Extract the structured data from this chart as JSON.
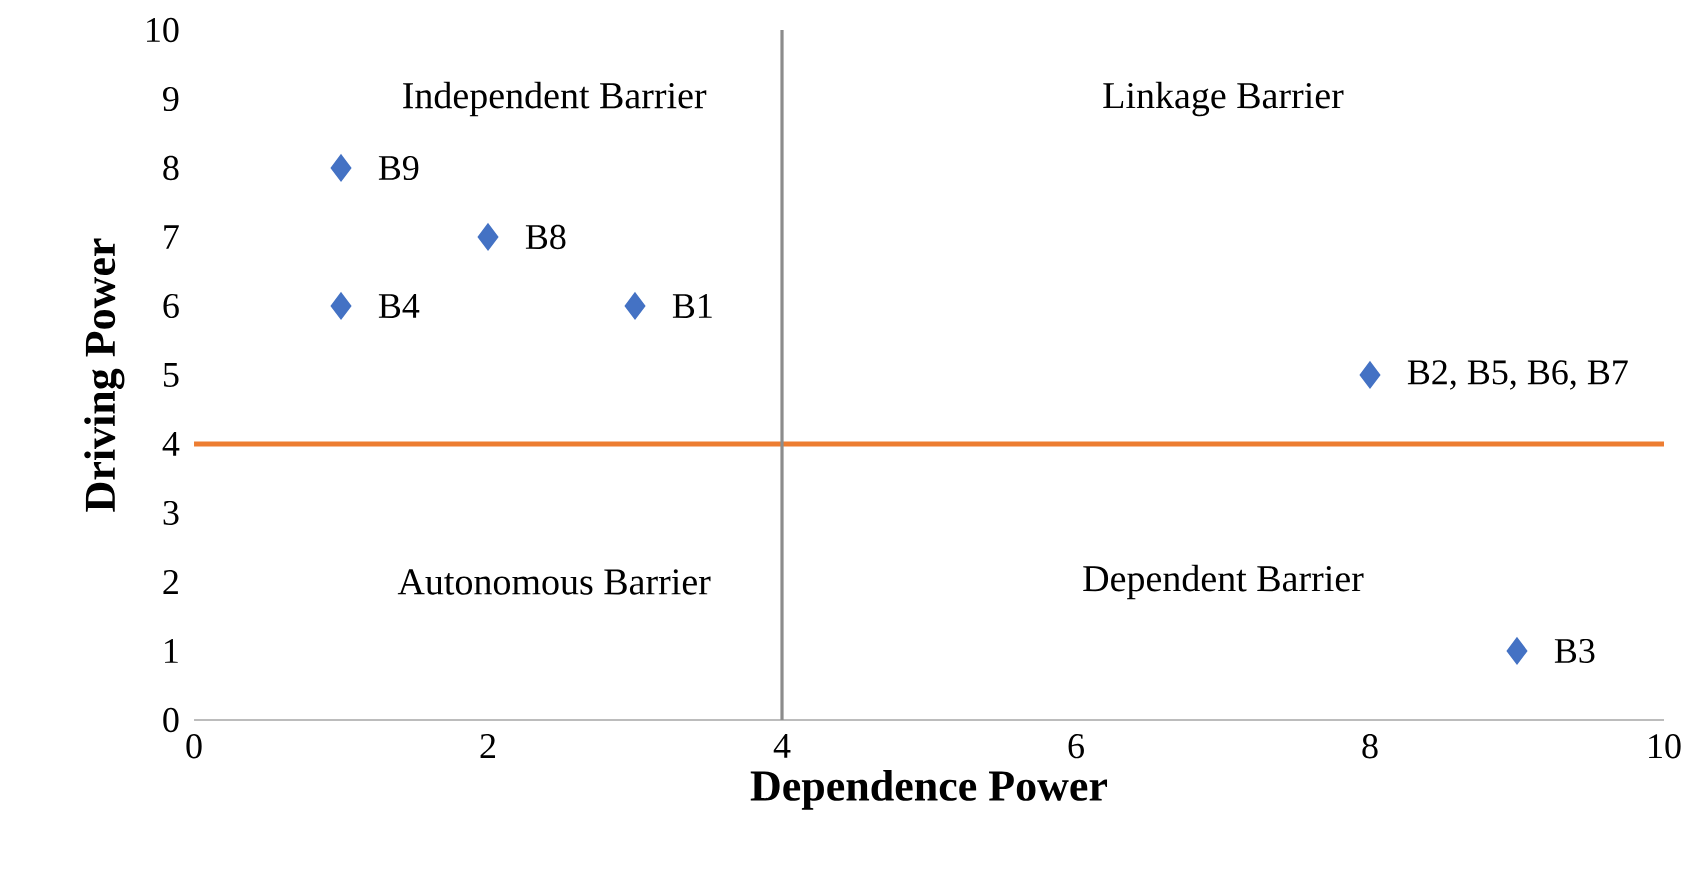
{
  "chart_data": {
    "type": "scatter",
    "xlabel": "Dependence Power",
    "ylabel": "Driving Power",
    "x": [
      1,
      2,
      1,
      3,
      8,
      9
    ],
    "values": [
      8,
      7,
      6,
      6,
      5,
      1
    ],
    "color": "#4472c4",
    "marker": "diamond",
    "xlim": [
      0,
      10
    ],
    "ylim": [
      0,
      10
    ],
    "xticks": [
      0,
      2,
      4,
      6,
      8,
      10
    ],
    "yticks": [
      0,
      1,
      2,
      3,
      4,
      5,
      6,
      7,
      8,
      9,
      10
    ],
    "grid": false,
    "ref_lines": [
      {
        "axis": "y",
        "value": 4,
        "color": "#ed7d31"
      },
      {
        "axis": "x",
        "value": 4,
        "color": "#8c8c8c"
      }
    ],
    "annotations": [
      {
        "text": "B9",
        "x": 1,
        "y": 8
      },
      {
        "text": "B8",
        "x": 2,
        "y": 7
      },
      {
        "text": "B4",
        "x": 1,
        "y": 6
      },
      {
        "text": "B1",
        "x": 3,
        "y": 6
      },
      {
        "text": "B2, B5, B6, B7",
        "x": 8,
        "y": 5
      },
      {
        "text": "B3",
        "x": 9,
        "y": 1
      },
      "Independent Barrier",
      "Linkage Barrier",
      "Autonomous Barrier",
      "Dependent Barrier"
    ]
  }
}
